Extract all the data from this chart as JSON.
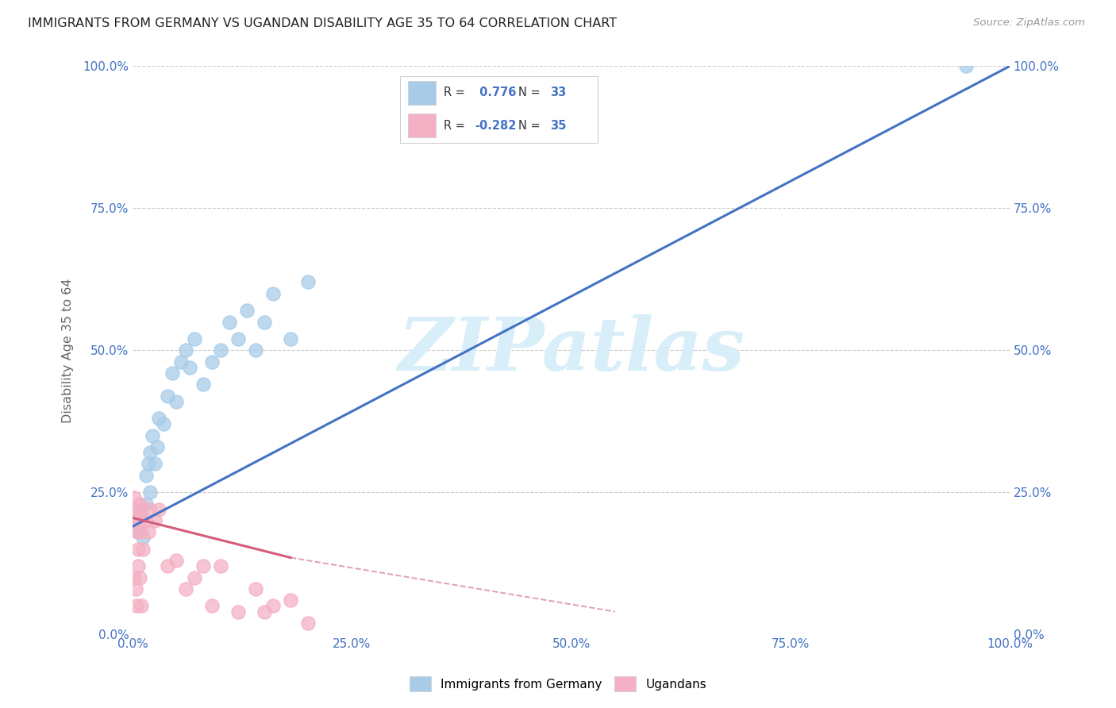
{
  "title": "IMMIGRANTS FROM GERMANY VS UGANDAN DISABILITY AGE 35 TO 64 CORRELATION CHART",
  "source": "Source: ZipAtlas.com",
  "ylabel": "Disability Age 35 to 64",
  "blue_label": "Immigrants from Germany",
  "pink_label": "Ugandans",
  "blue_R": 0.776,
  "blue_N": 33,
  "pink_R": -0.282,
  "pink_N": 35,
  "xlim": [
    0.0,
    100.0
  ],
  "ylim": [
    0.0,
    100.0
  ],
  "xticks": [
    0.0,
    25.0,
    50.0,
    75.0,
    100.0
  ],
  "yticks": [
    0.0,
    25.0,
    50.0,
    75.0,
    100.0
  ],
  "blue_fill": "#a8cce8",
  "pink_fill": "#f4b0c4",
  "blue_line": "#4472c4",
  "pink_line": "#d45c7a",
  "watermark_text": "ZIPatlas",
  "watermark_color": "#d8eef8",
  "background": "#ffffff",
  "grid_color": "#cccccc",
  "tick_color": "#4472c4",
  "blue_dots_x": [
    0.5,
    0.8,
    1.0,
    1.2,
    1.5,
    1.5,
    1.8,
    2.0,
    2.0,
    2.2,
    2.5,
    2.8,
    3.0,
    3.5,
    4.0,
    4.5,
    5.0,
    5.5,
    6.0,
    6.5,
    7.0,
    8.0,
    9.0,
    10.0,
    11.0,
    12.0,
    13.0,
    14.0,
    15.0,
    16.0,
    18.0,
    20.0,
    95.0
  ],
  "blue_dots_y": [
    18.0,
    19.0,
    21.0,
    17.0,
    23.0,
    28.0,
    30.0,
    25.0,
    32.0,
    35.0,
    30.0,
    33.0,
    38.0,
    37.0,
    42.0,
    46.0,
    41.0,
    48.0,
    50.0,
    47.0,
    52.0,
    44.0,
    48.0,
    50.0,
    55.0,
    52.0,
    57.0,
    50.0,
    55.0,
    60.0,
    52.0,
    62.0,
    100.0
  ],
  "pink_dots_x": [
    0.1,
    0.2,
    0.2,
    0.3,
    0.3,
    0.4,
    0.5,
    0.5,
    0.6,
    0.6,
    0.7,
    0.8,
    0.8,
    0.9,
    1.0,
    1.0,
    1.2,
    1.5,
    1.8,
    2.0,
    2.5,
    3.0,
    4.0,
    5.0,
    6.0,
    7.0,
    8.0,
    9.0,
    10.0,
    12.0,
    14.0,
    15.0,
    16.0,
    18.0,
    20.0
  ],
  "pink_dots_y": [
    22.0,
    24.0,
    10.0,
    20.0,
    8.0,
    5.0,
    18.0,
    22.0,
    12.0,
    15.0,
    20.0,
    10.0,
    23.0,
    18.0,
    22.0,
    5.0,
    15.0,
    20.0,
    18.0,
    22.0,
    20.0,
    22.0,
    12.0,
    13.0,
    8.0,
    10.0,
    12.0,
    5.0,
    12.0,
    4.0,
    8.0,
    4.0,
    5.0,
    6.0,
    2.0
  ],
  "blue_line_x0": 0.0,
  "blue_line_y0": 19.0,
  "blue_line_x1": 100.0,
  "blue_line_y1": 100.0,
  "pink_line_x0": 0.0,
  "pink_line_y0": 20.5,
  "pink_line_x1_solid": 18.0,
  "pink_line_x1_dash": 55.0,
  "pink_line_y1_solid": 13.5,
  "pink_line_y1_dash": 4.0
}
